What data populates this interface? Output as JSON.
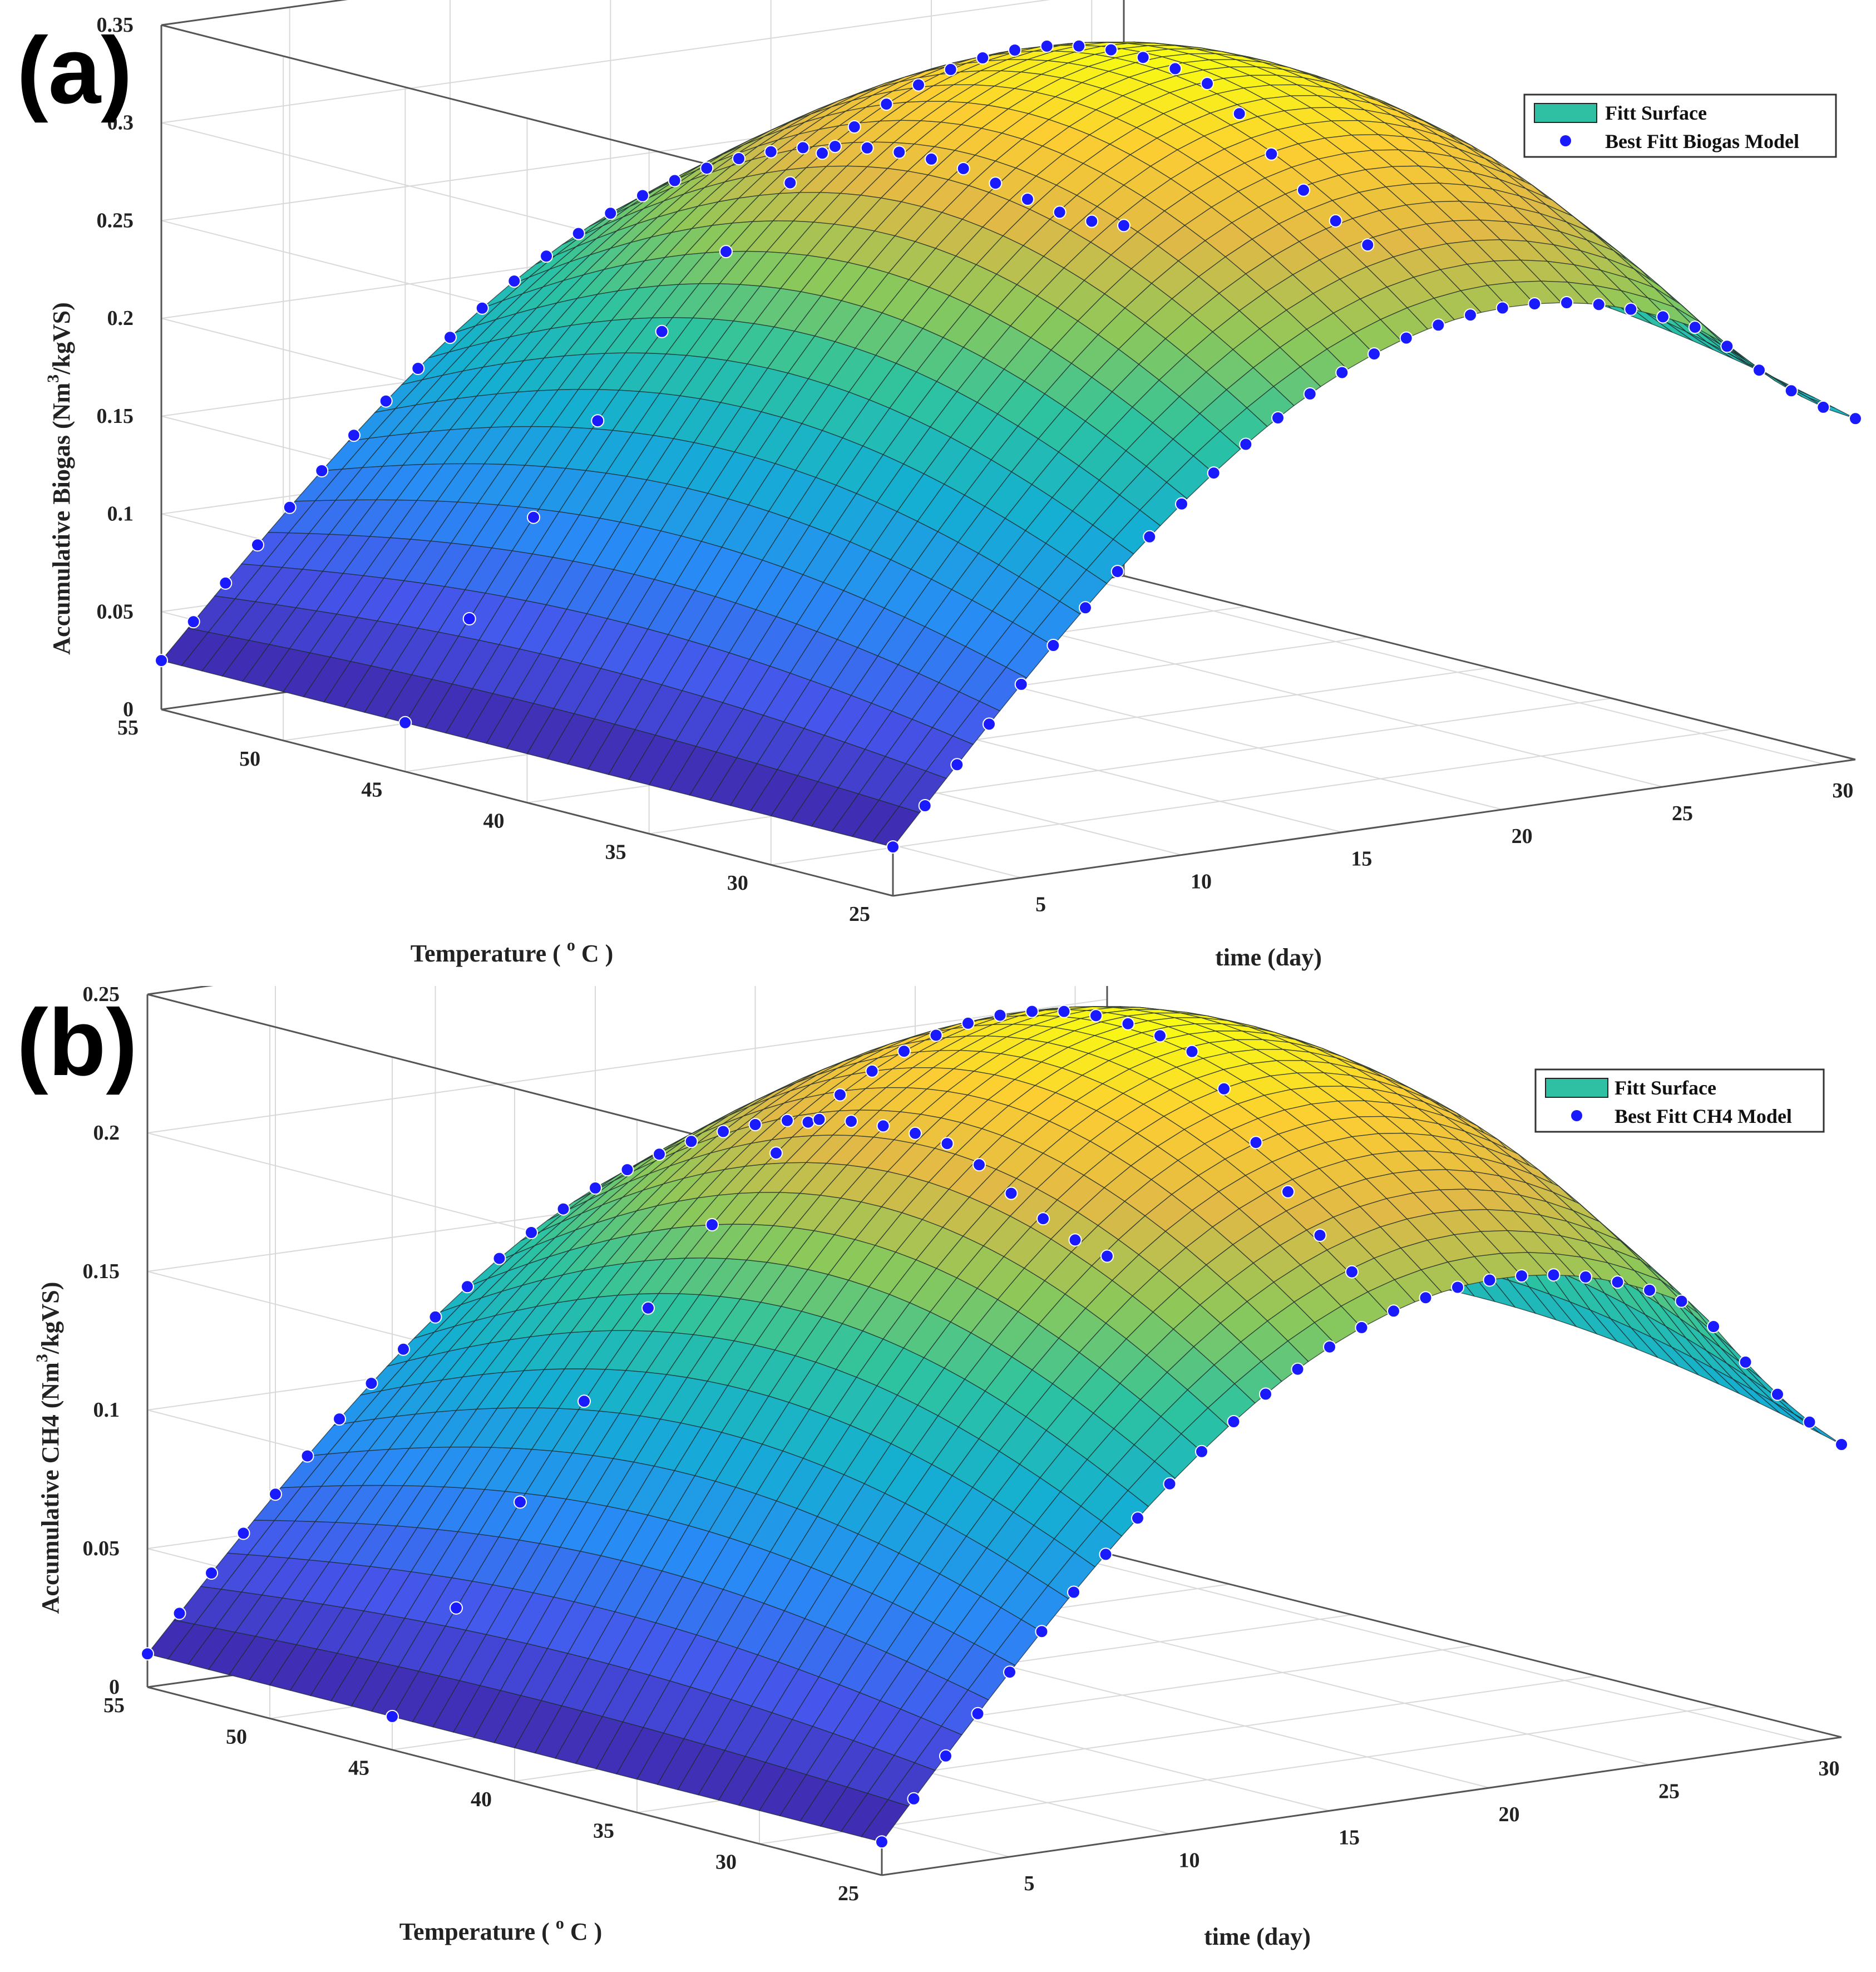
{
  "chart_data": [
    {
      "type": "surface",
      "panel_label": "(a)",
      "xlabel": "time (day)",
      "ylabel_main": "Temperature ( ",
      "ylabel_sup": "o",
      "ylabel_end": " C )",
      "zlabel_main": "Accumulative Biogas (Nm",
      "zlabel_sup": "3",
      "zlabel_end": "/kgVS)",
      "xlim": [
        1,
        31
      ],
      "ylim": [
        25,
        55
      ],
      "zlim": [
        0,
        0.35
      ],
      "x_ticks": [
        5,
        10,
        15,
        20,
        25,
        30
      ],
      "y_ticks": [
        25,
        30,
        35,
        40,
        45,
        50,
        55
      ],
      "z_ticks": [
        0,
        0.05,
        0.1,
        0.15,
        0.2,
        0.25,
        0.3,
        0.35
      ],
      "z_tick_labels": [
        "0",
        "0.05",
        "0.1",
        "0.15",
        "0.2",
        "0.25",
        "0.3",
        "0.35"
      ],
      "series": [
        {
          "name": "Fitt Surface",
          "kind": "surface",
          "colormap": "parula"
        },
        {
          "name": "Best Fitt Biogas Model",
          "kind": "markers",
          "color": "#1a1aff"
        }
      ],
      "model": {
        "z_max": 0.34,
        "z_min": 0.025,
        "z_at_55C_day31": 0.19,
        "z_at_25C_day31": 0.19
      },
      "legend_position": "top-right",
      "grid": true
    },
    {
      "type": "surface",
      "panel_label": "(b)",
      "xlabel": "time (day)",
      "ylabel_main": "Temperature ( ",
      "ylabel_sup": "o",
      "ylabel_end": " C )",
      "zlabel_main": "Accumulative CH4 (Nm",
      "zlabel_sup": "3",
      "zlabel_end": "/kgVS)",
      "xlim": [
        1,
        31
      ],
      "ylim": [
        25,
        55
      ],
      "zlim": [
        0,
        0.25
      ],
      "x_ticks": [
        5,
        10,
        15,
        20,
        25,
        30
      ],
      "y_ticks": [
        25,
        30,
        35,
        40,
        45,
        50,
        55
      ],
      "z_ticks": [
        0,
        0.05,
        0.1,
        0.15,
        0.2,
        0.25
      ],
      "z_tick_labels": [
        "0",
        "0.05",
        "0.1",
        "0.15",
        "0.2",
        "0.25"
      ],
      "series": [
        {
          "name": "Fitt Surface",
          "kind": "surface",
          "colormap": "parula"
        },
        {
          "name": "Best Fitt CH4 Model",
          "kind": "markers",
          "color": "#1a1aff"
        }
      ],
      "model": {
        "z_max": 0.245,
        "z_min": 0.012,
        "z_at_55C_day31": 0.1,
        "z_at_25C_day31": 0.1
      },
      "legend_position": "top-right",
      "grid": true
    }
  ]
}
